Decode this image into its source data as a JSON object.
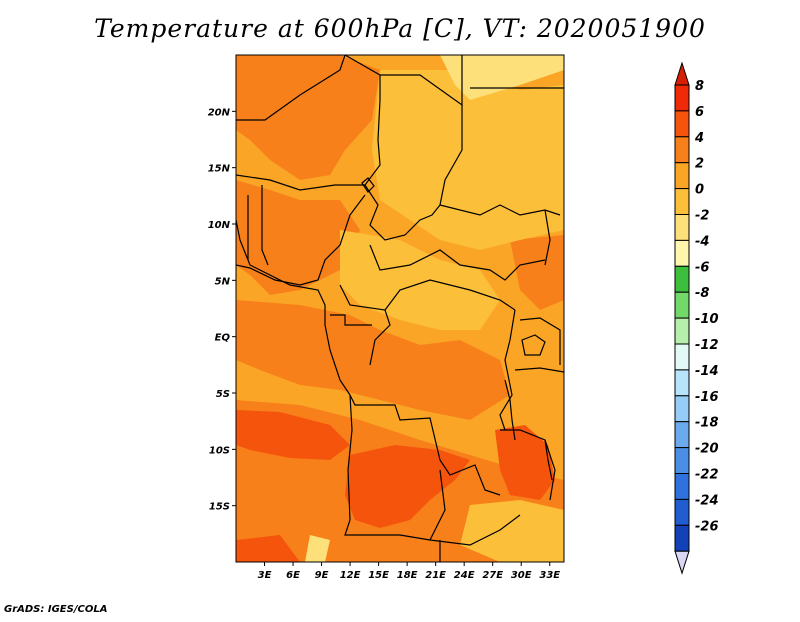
{
  "title": "Temperature at 600hPa [C], VT: 2020051900",
  "footer": "GrADS: IGES/COLA",
  "axes": {
    "lat_ticks": [
      {
        "value": 20,
        "label": "20N"
      },
      {
        "value": 15,
        "label": "15N"
      },
      {
        "value": 10,
        "label": "10N"
      },
      {
        "value": 5,
        "label": "5N"
      },
      {
        "value": 0,
        "label": "EQ"
      },
      {
        "value": -5,
        "label": "5S"
      },
      {
        "value": -10,
        "label": "10S"
      },
      {
        "value": -15,
        "label": "15S"
      }
    ],
    "lon_ticks": [
      {
        "value": 3,
        "label": "3E"
      },
      {
        "value": 6,
        "label": "6E"
      },
      {
        "value": 9,
        "label": "9E"
      },
      {
        "value": 12,
        "label": "12E"
      },
      {
        "value": 15,
        "label": "15E"
      },
      {
        "value": 18,
        "label": "18E"
      },
      {
        "value": 21,
        "label": "21E"
      },
      {
        "value": 24,
        "label": "24E"
      },
      {
        "value": 27,
        "label": "27E"
      },
      {
        "value": 30,
        "label": "30E"
      },
      {
        "value": 33,
        "label": "33E"
      }
    ],
    "lon_range": [
      0,
      34.5
    ],
    "lat_range": [
      -20,
      25
    ]
  },
  "colorbar": {
    "levels": [
      {
        "label": "8",
        "color": "#ee2a08"
      },
      {
        "label": "6",
        "color": "#f5540c"
      },
      {
        "label": "4",
        "color": "#f7801a"
      },
      {
        "label": "2",
        "color": "#fba526"
      },
      {
        "label": "0",
        "color": "#fcbf3a"
      },
      {
        "label": "-2",
        "color": "#fee07b"
      },
      {
        "label": "-4",
        "color": "#fff6ad"
      },
      {
        "label": "-6",
        "color": "#3cbf3c"
      },
      {
        "label": "-8",
        "color": "#72d86a"
      },
      {
        "label": "-10",
        "color": "#b6eeab"
      },
      {
        "label": "-12",
        "color": "#e3f9f6"
      },
      {
        "label": "-14",
        "color": "#b7e3fb"
      },
      {
        "label": "-16",
        "color": "#96cdf6"
      },
      {
        "label": "-18",
        "color": "#6caaee"
      },
      {
        "label": "-20",
        "color": "#4a8ee6"
      },
      {
        "label": "-22",
        "color": "#2f72de"
      },
      {
        "label": "-24",
        "color": "#1f5dd0"
      },
      {
        "label": "-26",
        "color": "#1342b8"
      }
    ],
    "top_color": "#d81e06",
    "bottom_color": "#0a1b6e",
    "arrow_bottom_color": "#dad6f5"
  },
  "map_colors": {
    "base": "#fba526",
    "warm": "#f7801a",
    "hot": "#f5540c",
    "cool": "#fcbf3a",
    "cooler": "#fee07b"
  }
}
